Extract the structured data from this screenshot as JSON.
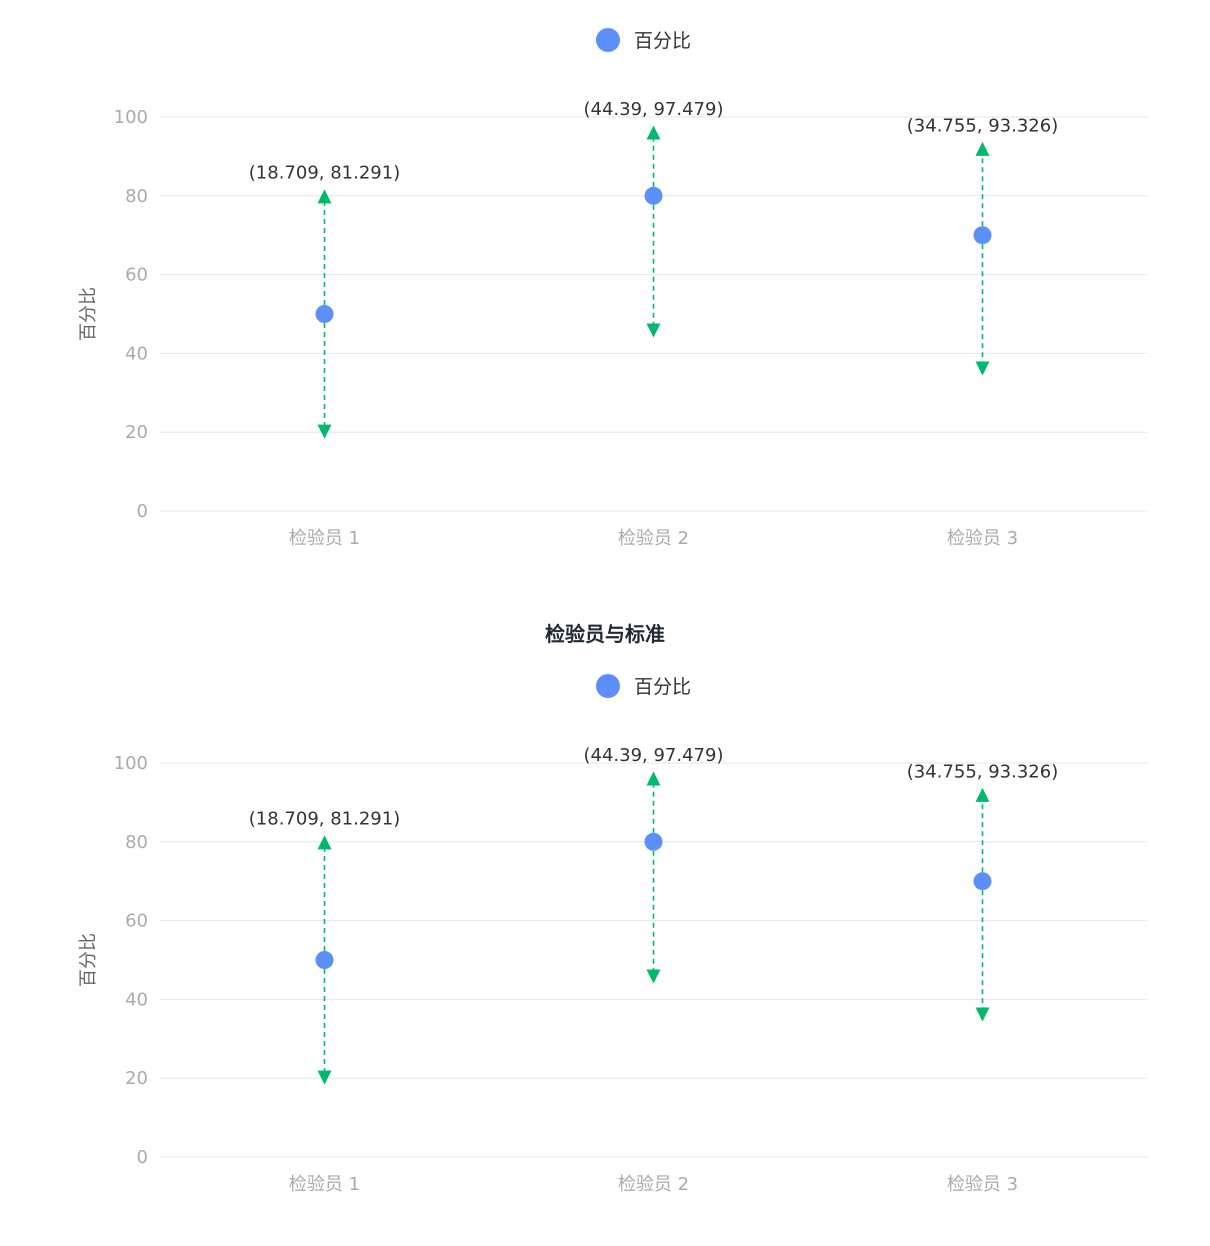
{
  "chart_data": [
    {
      "type": "scatter",
      "title": "",
      "legend": {
        "label": "百分比",
        "color": "#5b8ff9",
        "placement": "top-center"
      },
      "ylabel": "百分比",
      "xlabel": "",
      "ylim": [
        0,
        100
      ],
      "yticks": [
        "0",
        "20",
        "40",
        "60",
        "80",
        "100"
      ],
      "categories": [
        "检验员 1",
        "检验员 2",
        "检验员 3"
      ],
      "series": [
        {
          "name": "百分比",
          "values": [
            50,
            80,
            70
          ]
        }
      ],
      "intervals": [
        {
          "low": 18.709,
          "high": 81.291,
          "label": "(18.709, 81.291)"
        },
        {
          "low": 44.39,
          "high": 97.479,
          "label": "(44.39, 97.479)"
        },
        {
          "low": 34.755,
          "high": 93.326,
          "label": "(34.755, 93.326)"
        }
      ],
      "grid": true,
      "colors": {
        "point": "#5b8ff9",
        "interval": "#00b96b"
      }
    },
    {
      "type": "scatter",
      "title": "检验员与标准",
      "legend": {
        "label": "百分比",
        "color": "#5b8ff9",
        "placement": "top-center"
      },
      "ylabel": "百分比",
      "xlabel": "",
      "ylim": [
        0,
        100
      ],
      "yticks": [
        "0",
        "20",
        "40",
        "60",
        "80",
        "100"
      ],
      "categories": [
        "检验员 1",
        "检验员 2",
        "检验员 3"
      ],
      "series": [
        {
          "name": "百分比",
          "values": [
            50,
            80,
            70
          ]
        }
      ],
      "intervals": [
        {
          "low": 18.709,
          "high": 81.291,
          "label": "(18.709, 81.291)"
        },
        {
          "low": 44.39,
          "high": 97.479,
          "label": "(44.39, 97.479)"
        },
        {
          "low": 34.755,
          "high": 93.326,
          "label": "(34.755, 93.326)"
        }
      ],
      "grid": true,
      "colors": {
        "point": "#5b8ff9",
        "interval": "#00b96b"
      }
    }
  ]
}
